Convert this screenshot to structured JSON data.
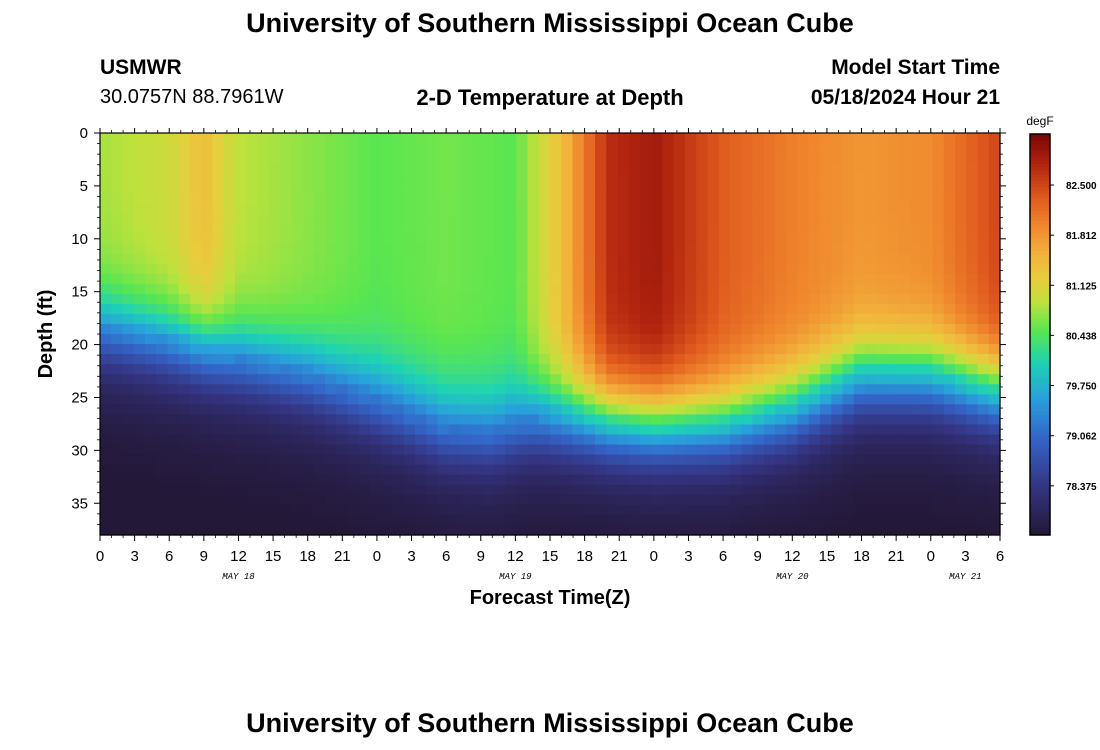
{
  "header": {
    "title": "University of Southern Mississippi Ocean Cube",
    "station": "USMWR",
    "coords": "30.0757N  88.7961W",
    "model_start_label": "Model Start Time",
    "model_start_value": "05/18/2024 Hour 21"
  },
  "footer": {
    "title": "University of Southern Mississippi Ocean Cube"
  },
  "chart_data": {
    "type": "heatmap",
    "title": "2-D Temperature at Depth",
    "xlabel": "Forecast Time(Z)",
    "ylabel": "Depth (ft)",
    "x_ticks": [
      "0",
      "3",
      "6",
      "9",
      "12",
      "15",
      "18",
      "21",
      "0",
      "3",
      "6",
      "9",
      "12",
      "15",
      "18",
      "21",
      "0",
      "3",
      "6",
      "9",
      "12",
      "15",
      "18",
      "21",
      "0",
      "3",
      "6"
    ],
    "x_range_hours": [
      0,
      78
    ],
    "date_labels": [
      {
        "label": "MAY 18",
        "hour": 12
      },
      {
        "label": "MAY 19",
        "hour": 36
      },
      {
        "label": "MAY 20",
        "hour": 60
      },
      {
        "label": "MAY 21",
        "hour": 75
      }
    ],
    "y_ticks": [
      0,
      5,
      10,
      15,
      20,
      25,
      30,
      35
    ],
    "ylim": [
      0,
      38
    ],
    "y_inverted": true,
    "colorbar": {
      "unit": "degF",
      "labels": [
        "82.500",
        "81.812",
        "81.125",
        "80.438",
        "79.750",
        "79.062",
        "78.375"
      ],
      "range": [
        77.7,
        83.2
      ]
    },
    "surface_temp_by_hour": [
      [
        0,
        80.8
      ],
      [
        6,
        81.0
      ],
      [
        9,
        81.4
      ],
      [
        12,
        80.9
      ],
      [
        18,
        80.7
      ],
      [
        24,
        80.5
      ],
      [
        30,
        80.6
      ],
      [
        36,
        80.5
      ],
      [
        40,
        81.4
      ],
      [
        44,
        82.7
      ],
      [
        48,
        82.9
      ],
      [
        54,
        82.3
      ],
      [
        60,
        82.0
      ],
      [
        66,
        81.8
      ],
      [
        72,
        81.9
      ],
      [
        78,
        82.5
      ]
    ],
    "thermocline_depth_by_hour": [
      [
        0,
        18.5
      ],
      [
        9,
        20.5
      ],
      [
        18,
        23
      ],
      [
        24,
        25.5
      ],
      [
        30,
        28
      ],
      [
        34,
        28.5
      ],
      [
        38,
        27
      ],
      [
        42,
        27
      ],
      [
        48,
        27.5
      ],
      [
        54,
        27.5
      ],
      [
        60,
        26
      ],
      [
        66,
        23
      ],
      [
        72,
        23
      ],
      [
        78,
        24.5
      ]
    ],
    "bottom_temp": 77.9
  }
}
